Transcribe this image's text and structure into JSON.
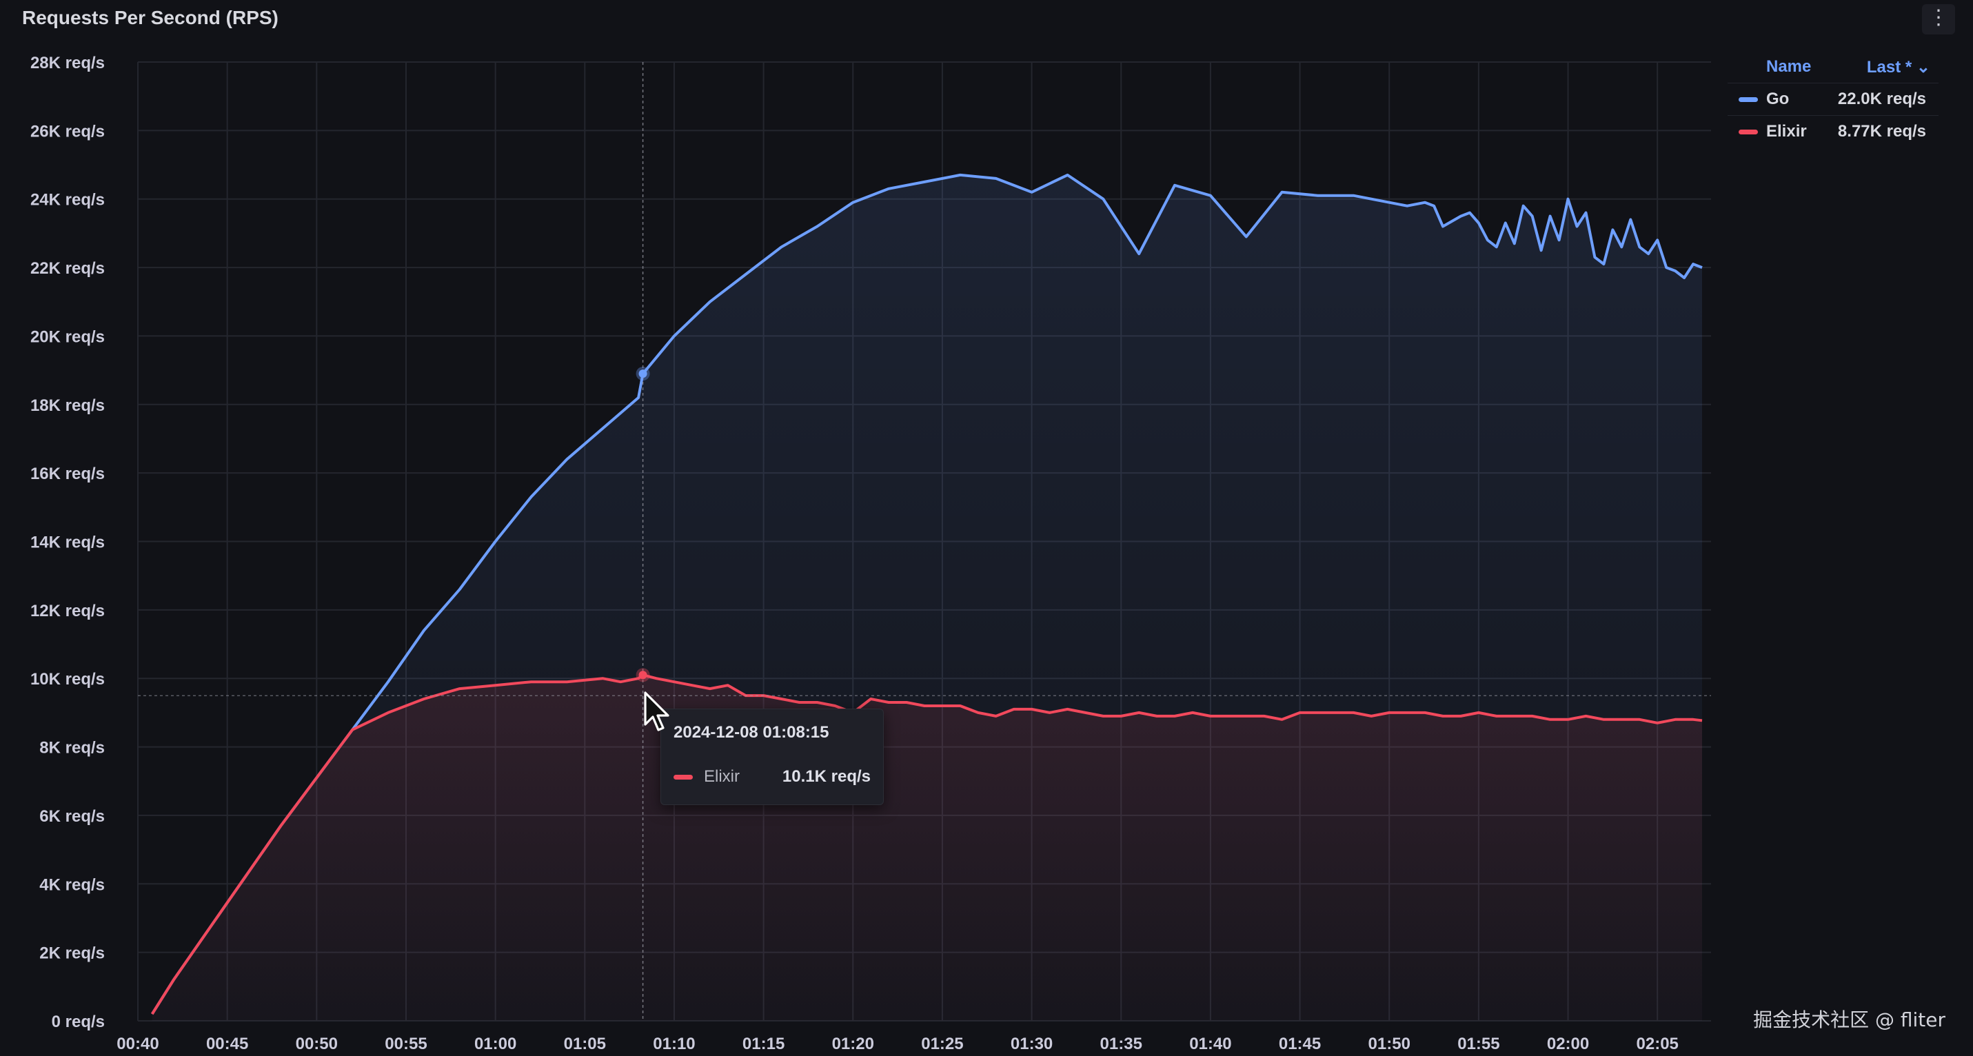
{
  "panel": {
    "title": "Requests Per Second (RPS)",
    "menu_icon": "kebab-menu-icon"
  },
  "legend": {
    "name_header": "Name",
    "last_header": "Last * ⌄",
    "items": [
      {
        "name": "Go",
        "value": "22.0K req/s",
        "color": "#6e9fff"
      },
      {
        "name": "Elixir",
        "value": "8.77K req/s",
        "color": "#f2495c"
      }
    ]
  },
  "tooltip": {
    "time": "2024-12-08 01:08:15",
    "series": "Elixir",
    "value": "10.1K req/s",
    "color": "#f2495c"
  },
  "watermark": "掘金技术社区 @ fliter",
  "chart_data": {
    "type": "area",
    "xlabel": "",
    "ylabel": "",
    "ylim": [
      0,
      28000
    ],
    "xlim_minutes": [
      40,
      128
    ],
    "y_ticks": [
      "0 req/s",
      "2K req/s",
      "4K req/s",
      "6K req/s",
      "8K req/s",
      "10K req/s",
      "12K req/s",
      "14K req/s",
      "16K req/s",
      "18K req/s",
      "20K req/s",
      "22K req/s",
      "24K req/s",
      "26K req/s",
      "28K req/s"
    ],
    "y_tick_values": [
      0,
      2000,
      4000,
      6000,
      8000,
      10000,
      12000,
      14000,
      16000,
      18000,
      20000,
      22000,
      24000,
      26000,
      28000
    ],
    "x_ticks": [
      "00:40",
      "00:45",
      "00:50",
      "00:55",
      "01:00",
      "01:05",
      "01:10",
      "01:15",
      "01:20",
      "01:25",
      "01:30",
      "01:35",
      "01:40",
      "01:45",
      "01:50",
      "01:55",
      "02:00",
      "02:05"
    ],
    "x_tick_values": [
      40,
      45,
      50,
      55,
      60,
      65,
      70,
      75,
      80,
      85,
      90,
      95,
      100,
      105,
      110,
      115,
      120,
      125
    ],
    "grid": true,
    "legend_position": "right",
    "crosshair_x": 68.25,
    "series": [
      {
        "name": "Go",
        "color": "#6e9fff",
        "x": [
          40.8,
          42,
          44,
          46,
          48,
          50,
          52,
          54,
          56,
          58,
          60,
          62,
          64,
          66,
          68,
          68.25,
          70,
          72,
          74,
          76,
          78,
          80,
          82,
          84,
          86,
          88,
          90,
          92,
          94,
          96,
          98,
          100,
          102,
          104,
          106,
          108,
          110,
          111,
          112,
          112.5,
          113,
          114,
          114.5,
          115,
          115.5,
          116,
          116.5,
          117,
          117.5,
          118,
          118.5,
          119,
          119.5,
          120,
          120.5,
          121,
          121.5,
          122,
          122.5,
          123,
          123.5,
          124,
          124.5,
          125,
          125.5,
          126,
          126.5,
          127,
          127.5
        ],
        "values": [
          200,
          1200,
          2700,
          4200,
          5700,
          7100,
          8500,
          9900,
          11400,
          12600,
          14000,
          15300,
          16400,
          17300,
          18200,
          18900,
          20000,
          21000,
          21800,
          22600,
          23200,
          23900,
          24300,
          24500,
          24700,
          24600,
          24200,
          24700,
          24000,
          22400,
          24400,
          24100,
          22900,
          24200,
          24100,
          24100,
          23900,
          23800,
          23900,
          23800,
          23200,
          23500,
          23600,
          23300,
          22800,
          22600,
          23300,
          22700,
          23800,
          23500,
          22500,
          23500,
          22800,
          24000,
          23200,
          23600,
          22300,
          22100,
          23100,
          22600,
          23400,
          22600,
          22400,
          22800,
          22000,
          21900,
          21700,
          22100,
          22000
        ]
      },
      {
        "name": "Elixir",
        "color": "#f2495c",
        "x": [
          40.8,
          42,
          44,
          46,
          48,
          50,
          52,
          54,
          56,
          58,
          60,
          62,
          64,
          66,
          67,
          68,
          68.25,
          69,
          70,
          71,
          72,
          73,
          74,
          75,
          76,
          77,
          78,
          79,
          80,
          81,
          82,
          83,
          84,
          85,
          86,
          87,
          88,
          89,
          90,
          91,
          92,
          93,
          94,
          95,
          96,
          97,
          98,
          99,
          100,
          101,
          102,
          103,
          104,
          105,
          106,
          107,
          108,
          109,
          110,
          111,
          112,
          113,
          114,
          115,
          116,
          117,
          118,
          119,
          120,
          121,
          122,
          123,
          124,
          125,
          126,
          127,
          127.5
        ],
        "values": [
          200,
          1200,
          2700,
          4200,
          5700,
          7100,
          8500,
          9000,
          9400,
          9700,
          9800,
          9900,
          9900,
          10000,
          9900,
          10000,
          10100,
          10000,
          9900,
          9800,
          9700,
          9800,
          9500,
          9500,
          9400,
          9300,
          9300,
          9200,
          9000,
          9400,
          9300,
          9300,
          9200,
          9200,
          9200,
          9000,
          8900,
          9100,
          9100,
          9000,
          9100,
          9000,
          8900,
          8900,
          9000,
          8900,
          8900,
          9000,
          8900,
          8900,
          8900,
          8900,
          8800,
          9000,
          9000,
          9000,
          9000,
          8900,
          9000,
          9000,
          9000,
          8900,
          8900,
          9000,
          8900,
          8900,
          8900,
          8800,
          8800,
          8900,
          8800,
          8800,
          8800,
          8700,
          8800,
          8800,
          8770
        ]
      }
    ]
  }
}
